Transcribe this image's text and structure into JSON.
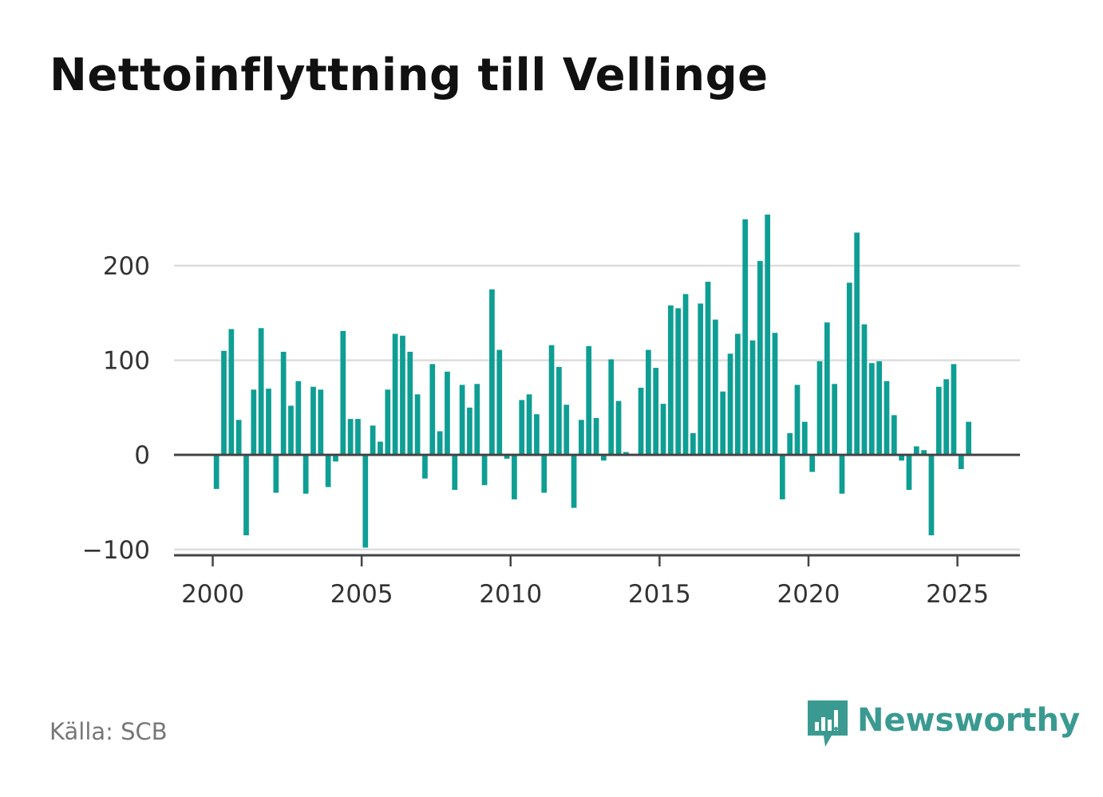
{
  "title": "Nettoinflyttning till Vellinge",
  "source": "Källa: SCB",
  "brand": {
    "name": "Newsworthy",
    "icon": "newsworthy-logo-icon",
    "color": "#3a9a91"
  },
  "chart_data": {
    "type": "bar",
    "title": "Nettoinflyttning till Vellinge",
    "xlabel": "",
    "ylabel": "",
    "bar_color": "#0e9e94",
    "gridlines": true,
    "ylim": [
      -112,
      270
    ],
    "xlim": [
      1998.7,
      2027.1
    ],
    "yticks": [
      -100,
      0,
      100,
      200
    ],
    "ytick_labels": [
      "−100",
      "0",
      "100",
      "200"
    ],
    "xticks": [
      2000,
      2005,
      2010,
      2015,
      2020,
      2025
    ],
    "xtick_labels": [
      "2000",
      "2005",
      "2010",
      "2015",
      "2020",
      "2025"
    ],
    "x": [
      "2000 Q1",
      "2000 Q2",
      "2000 Q3",
      "2000 Q4",
      "2001 Q1",
      "2001 Q2",
      "2001 Q3",
      "2001 Q4",
      "2002 Q1",
      "2002 Q2",
      "2002 Q3",
      "2002 Q4",
      "2003 Q1",
      "2003 Q2",
      "2003 Q3",
      "2003 Q4",
      "2004 Q1",
      "2004 Q2",
      "2004 Q3",
      "2004 Q4",
      "2005 Q1",
      "2005 Q2",
      "2005 Q3",
      "2005 Q4",
      "2006 Q1",
      "2006 Q2",
      "2006 Q3",
      "2006 Q4",
      "2007 Q1",
      "2007 Q2",
      "2007 Q3",
      "2007 Q4",
      "2008 Q1",
      "2008 Q2",
      "2008 Q3",
      "2008 Q4",
      "2009 Q1",
      "2009 Q2",
      "2009 Q3",
      "2009 Q4",
      "2010 Q1",
      "2010 Q2",
      "2010 Q3",
      "2010 Q4",
      "2011 Q1",
      "2011 Q2",
      "2011 Q3",
      "2011 Q4",
      "2012 Q1",
      "2012 Q2",
      "2012 Q3",
      "2012 Q4",
      "2013 Q1",
      "2013 Q2",
      "2013 Q3",
      "2013 Q4",
      "2014 Q1",
      "2014 Q2",
      "2014 Q3",
      "2014 Q4",
      "2015 Q1",
      "2015 Q2",
      "2015 Q3",
      "2015 Q4",
      "2016 Q1",
      "2016 Q2",
      "2016 Q3",
      "2016 Q4",
      "2017 Q1",
      "2017 Q2",
      "2017 Q3",
      "2017 Q4",
      "2018 Q1",
      "2018 Q2",
      "2018 Q3",
      "2018 Q4",
      "2019 Q1",
      "2019 Q2",
      "2019 Q3",
      "2019 Q4",
      "2020 Q1",
      "2020 Q2",
      "2020 Q3",
      "2020 Q4",
      "2021 Q1",
      "2021 Q2",
      "2021 Q3",
      "2021 Q4",
      "2022 Q1",
      "2022 Q2",
      "2022 Q3",
      "2022 Q4",
      "2023 Q1",
      "2023 Q2",
      "2023 Q3",
      "2023 Q4",
      "2024 Q1",
      "2024 Q2",
      "2024 Q3",
      "2024 Q4",
      "2025 Q1",
      "2025 Q2"
    ],
    "values": [
      -36,
      110,
      133,
      37,
      -85,
      69,
      134,
      70,
      -40,
      109,
      52,
      78,
      -41,
      72,
      69,
      -34,
      -7,
      131,
      38,
      38,
      -98,
      31,
      14,
      69,
      128,
      126,
      109,
      64,
      -25,
      96,
      25,
      88,
      -37,
      74,
      50,
      75,
      -32,
      175,
      111,
      -4,
      -47,
      58,
      64,
      43,
      -40,
      116,
      93,
      53,
      -56,
      37,
      115,
      39,
      -6,
      101,
      57,
      3,
      null,
      71,
      111,
      92,
      54,
      158,
      155,
      170,
      23,
      160,
      183,
      143,
      67,
      107,
      128,
      249,
      121,
      205,
      254,
      129,
      -47,
      23,
      74,
      35,
      -18,
      99,
      140,
      75,
      -41,
      182,
      235,
      138,
      97,
      99,
      78,
      42,
      -6,
      -37,
      9,
      5,
      -85,
      72,
      80,
      96,
      -15,
      35
    ]
  }
}
